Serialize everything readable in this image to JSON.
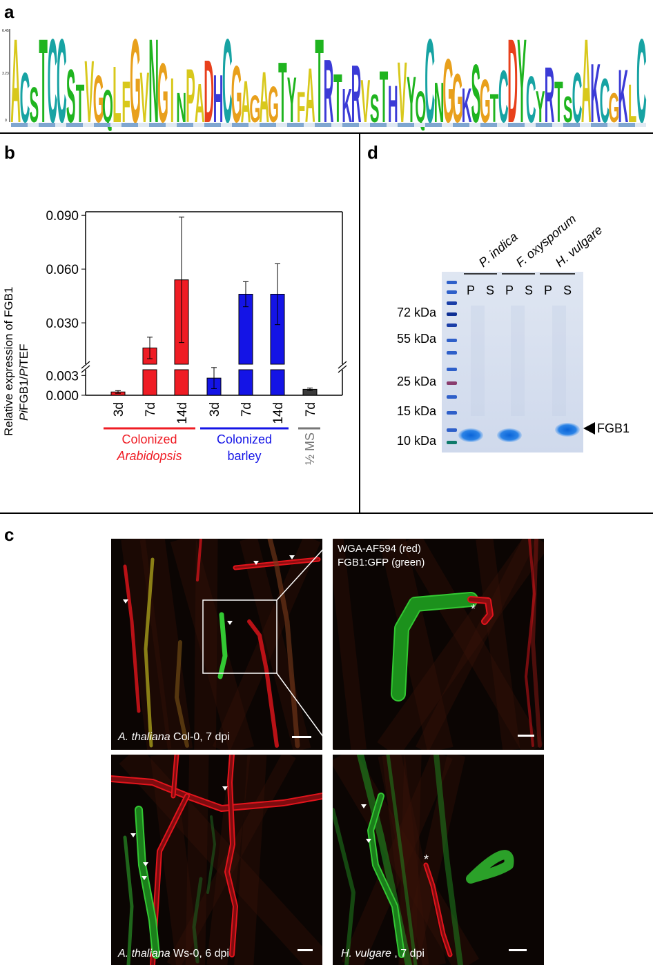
{
  "panels": {
    "a": "a",
    "b": "b",
    "c": "c",
    "d": "d"
  },
  "logo": {
    "y_max_label": "6.45",
    "y_mid_label": "3.23",
    "y_min_label": "0",
    "letters": [
      "A",
      "C",
      "S",
      "T",
      "C",
      "C",
      "S",
      "T",
      "V",
      "G",
      "Q",
      "L",
      "F",
      "G",
      "V",
      "N",
      "G",
      "I",
      "N",
      "P",
      "A",
      "D",
      "H",
      "C",
      "G",
      "A",
      "G",
      "A",
      "G",
      "T",
      "Y",
      "F",
      "A",
      "T",
      "R",
      "T",
      "K",
      "R",
      "V",
      "S",
      "T",
      "H",
      "V",
      "Y",
      "Q",
      "C",
      "N",
      "G",
      "G",
      "K",
      "S",
      "G",
      "T",
      "C",
      "D",
      "Y",
      "C",
      "Y",
      "R",
      "T",
      "S",
      "C",
      "A",
      "K",
      "C",
      "G",
      "K",
      "L",
      "C"
    ]
  },
  "chart_data": {
    "type": "bar",
    "categories": [
      "3d",
      "7d",
      "14d",
      "3d",
      "7d",
      "14d",
      "7d"
    ],
    "values": [
      0.0005,
      0.016,
      0.054,
      0.0026,
      0.046,
      0.046,
      0.0009
    ],
    "errors": [
      0.0002,
      0.006,
      0.035,
      0.0016,
      0.007,
      0.017,
      0.0002
    ],
    "colors": [
      "#ef1c24",
      "#ef1c24",
      "#ef1c24",
      "#1414e6",
      "#1414e6",
      "#1414e6",
      "#3a3a3a"
    ],
    "ylabel_line1": "Relative expression of FGB1",
    "ylabel_line2_parts": [
      "Pi",
      "FGB1/",
      "Pi",
      "TEF"
    ],
    "upper_ticks": [
      "0.090",
      "0.060",
      "0.030"
    ],
    "lower_ticks": [
      "0.003",
      "0.000"
    ],
    "upper_ylim": [
      0.01,
      0.092
    ],
    "lower_ylim": [
      0,
      0.0045
    ],
    "groups": [
      {
        "line1": "Colonized",
        "line2": "Arabidopsis",
        "color": "#ef1c24"
      },
      {
        "line1": "Colonized",
        "line2": "barley",
        "color": "#1414e6"
      },
      {
        "line1": "½ MS",
        "line2": "",
        "color": "#777777"
      }
    ]
  },
  "gel": {
    "species": [
      "P. indica",
      "F. oxysporum",
      "H. vulgare"
    ],
    "lane_labels": [
      "P",
      "S",
      "P",
      "S",
      "P",
      "S"
    ],
    "markers": [
      "72 kDa",
      "55 kDa",
      "25 kDa",
      "15 kDa",
      "10 kDa"
    ],
    "band_label": "FGB1"
  },
  "micrographs": {
    "tl_caption_species": "A. thaliana",
    "tl_caption_rest": " Col-0, 7 dpi",
    "tr_caption_line1": "WGA-AF594 (red)",
    "tr_caption_line2": "FGB1:GFP (green)",
    "bl_caption_species": "A. thaliana",
    "bl_caption_rest": " Ws-0, 6 dpi",
    "br_caption_species": "H. vulgare",
    "br_caption_rest": " , 7 dpi",
    "asterisk": "*"
  }
}
